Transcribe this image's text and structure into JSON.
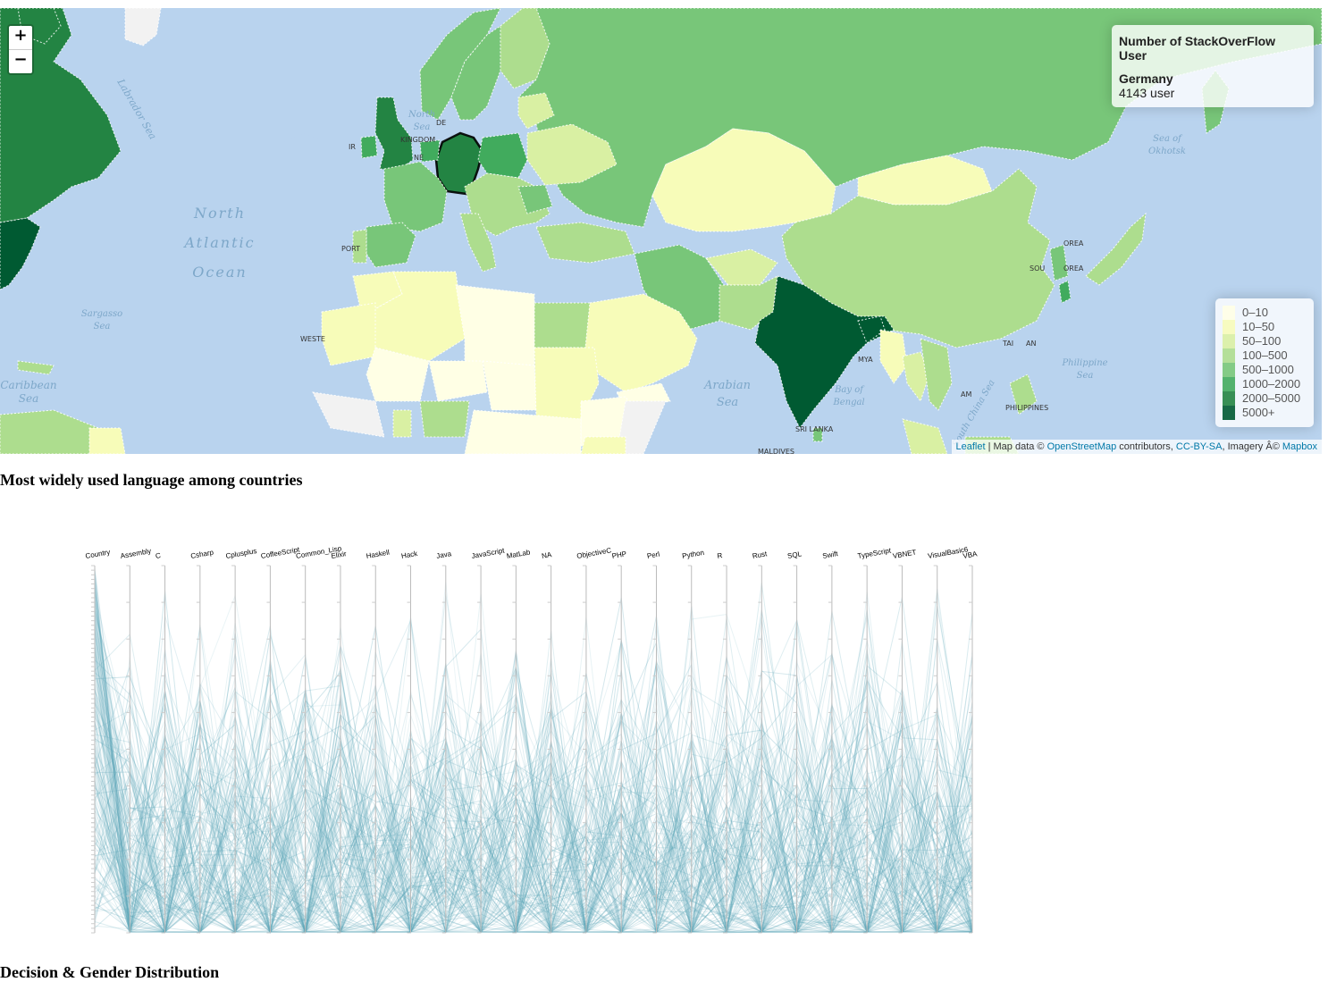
{
  "map": {
    "zoom_in": "+",
    "zoom_out": "−",
    "info": {
      "heading": "Number of StackOverFlow User",
      "country": "Germany",
      "value": "4143 user"
    },
    "legend": [
      {
        "label": "0–10",
        "color": "#ffffe5"
      },
      {
        "label": "10–50",
        "color": "#f7fcb9"
      },
      {
        "label": "50–100",
        "color": "#d9f0a3"
      },
      {
        "label": "100–500",
        "color": "#addd8e"
      },
      {
        "label": "500–1000",
        "color": "#78c679"
      },
      {
        "label": "1000–2000",
        "color": "#41ab5d"
      },
      {
        "label": "2000–5000",
        "color": "#238443"
      },
      {
        "label": "5000+",
        "color": "#005a32"
      }
    ],
    "attribution": {
      "leaflet": "Leaflet",
      "sep1": " | Map data © ",
      "osm": "OpenStreetMap",
      "sep2": " contributors, ",
      "license": "CC-BY-SA",
      "sep3": ", Imagery Â© ",
      "mapbox": "Mapbox"
    },
    "sea_labels": [
      "North Atlantic Ocean",
      "Labrador Sea",
      "North Sea",
      "Sargasso Sea",
      "Caribbean Sea",
      "Arabian Sea",
      "Bay of Bengal",
      "Philippine Sea",
      "Sea of Okhotsk",
      "South China Sea"
    ],
    "country_labels": [
      "IR",
      "KINGDOM",
      "NE",
      "DE",
      "PORT",
      "WESTE",
      "MALDIVES",
      "SRI LANKA",
      "MYA",
      "SOU",
      "OREA",
      "PHILIPPINES",
      "TAI",
      "AN",
      "AM"
    ]
  },
  "section1_title": "Most widely used language among countries",
  "section2_title": "Decision & Gender Distribution",
  "parallel_coords": {
    "line_color": "#5fa8ba",
    "axes": [
      "Country",
      "Assembly",
      "C",
      "Csharp",
      "Cplusplus",
      "CoffeeScript",
      "Common_Lisp",
      "Elixir",
      "Haskell",
      "Hack",
      "Java",
      "JavaScript",
      "MatLab",
      "NA",
      "ObjectiveC",
      "PHP",
      "Perl",
      "Python",
      "R",
      "Rust",
      "SQL",
      "Swift",
      "TypeScript",
      "VBNET",
      "VisualBasic6",
      "VBA"
    ]
  }
}
